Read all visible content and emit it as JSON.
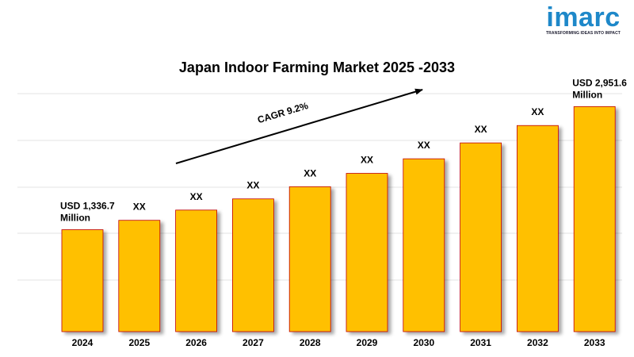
{
  "logo": {
    "name": "imarc",
    "tagline": "TRANSFORMING IDEAS INTO IMPACT"
  },
  "chart_data": {
    "type": "bar",
    "title": "Japan Indoor Farming Market 2025 -2033",
    "categories": [
      "2024",
      "2025",
      "2026",
      "2027",
      "2028",
      "2029",
      "2030",
      "2031",
      "2032",
      "2033"
    ],
    "values": [
      1336.7,
      1459.7,
      1594.0,
      1740.6,
      1900.7,
      2075.6,
      2266.6,
      2475.1,
      2702.8,
      2951.6
    ],
    "value_labels": [
      "USD 1,336.7 Million",
      "XX",
      "XX",
      "XX",
      "XX",
      "XX",
      "XX",
      "XX",
      "XX",
      "USD 2,951.6 Million"
    ],
    "cagr_label": "CAGR 9.2%",
    "xlabel": "",
    "ylabel": "",
    "ylim": [
      0,
      3250
    ],
    "grid": true,
    "bar_color": "#FFC000",
    "bar_edge_color": "#C00000"
  }
}
